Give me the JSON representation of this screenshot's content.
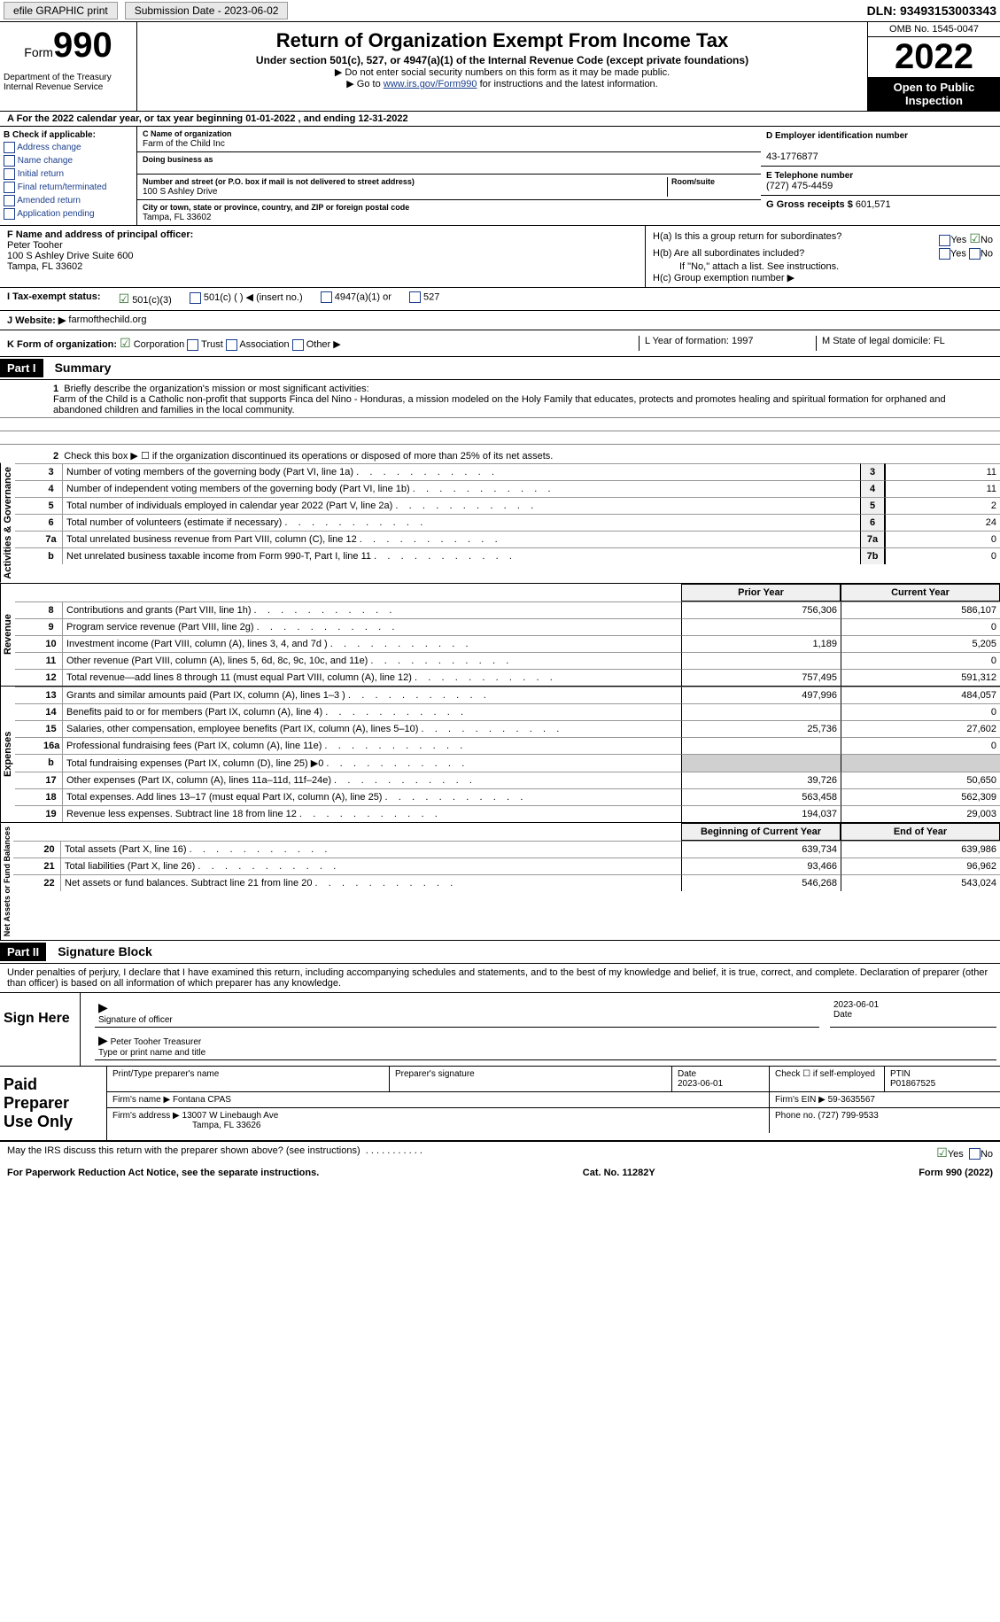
{
  "topbar": {
    "efile": "efile GRAPHIC print",
    "sub_date_label": "Submission Date - 2023-06-02",
    "dln": "DLN: 93493153003343"
  },
  "header": {
    "form_word": "Form",
    "form_num": "990",
    "title": "Return of Organization Exempt From Income Tax",
    "subtitle": "Under section 501(c), 527, or 4947(a)(1) of the Internal Revenue Code (except private foundations)",
    "note1": "▶ Do not enter social security numbers on this form as it may be made public.",
    "note2_pre": "▶ Go to ",
    "note2_link": "www.irs.gov/Form990",
    "note2_post": " for instructions and the latest information.",
    "dept": "Department of the Treasury Internal Revenue Service",
    "omb": "OMB No. 1545-0047",
    "year": "2022",
    "inspect": "Open to Public Inspection"
  },
  "lineA": "A For the 2022 calendar year, or tax year beginning 01-01-2022   , and ending 12-31-2022",
  "sectionB": {
    "hdr": "B Check if applicable:",
    "opts": [
      "Address change",
      "Name change",
      "Initial return",
      "Final return/terminated",
      "Amended return",
      "Application pending"
    ]
  },
  "sectionC": {
    "name_label": "C Name of organization",
    "name": "Farm of the Child Inc",
    "dba_label": "Doing business as",
    "addr_label": "Number and street (or P.O. box if mail is not delivered to street address)",
    "room_label": "Room/suite",
    "addr": "100 S Ashley Drive",
    "city_label": "City or town, state or province, country, and ZIP or foreign postal code",
    "city": "Tampa, FL  33602"
  },
  "sectionD": {
    "label": "D Employer identification number",
    "ein": "43-1776877",
    "tel_label": "E Telephone number",
    "tel": "(727) 475-4459",
    "gross_label": "G Gross receipts $",
    "gross": "601,571"
  },
  "sectionF": {
    "label": "F  Name and address of principal officer:",
    "name": "Peter Tooher",
    "addr": "100 S Ashley Drive Suite 600",
    "city": "Tampa, FL  33602"
  },
  "sectionH": {
    "ha": "H(a)  Is this a group return for subordinates?",
    "hb": "H(b)  Are all subordinates included?",
    "hb_note": "If \"No,\" attach a list. See instructions.",
    "hc": "H(c)  Group exemption number ▶",
    "yes": "Yes",
    "no": "No"
  },
  "sectionI": {
    "label": "I   Tax-exempt status:",
    "o1": "501(c)(3)",
    "o2": "501(c) (  ) ◀ (insert no.)",
    "o3": "4947(a)(1) or",
    "o4": "527"
  },
  "sectionJ": {
    "label": "J   Website: ▶",
    "site": "farmofthechild.org"
  },
  "sectionK": {
    "label": "K Form of organization:",
    "o1": "Corporation",
    "o2": "Trust",
    "o3": "Association",
    "o4": "Other ▶",
    "l": "L Year of formation: 1997",
    "m": "M State of legal domicile: FL"
  },
  "partI": {
    "part": "Part I",
    "title": "Summary",
    "q1_label": "Briefly describe the organization's mission or most significant activities:",
    "q1_text": "Farm of the Child is a Catholic non-profit that supports Finca del Nino - Honduras, a mission modeled on the Holy Family that educates, protects and promotes healing and spiritual formation for orphaned and abandoned children and families in the local community.",
    "q2": "Check this box ▶ ☐  if the organization discontinued its operations or disposed of more than 25% of its net assets.",
    "tabs": {
      "a": "Activities & Governance",
      "r": "Revenue",
      "e": "Expenses",
      "n": "Net Assets or Fund Balances"
    },
    "rows_single": [
      {
        "n": "3",
        "t": "Number of voting members of the governing body (Part VI, line 1a)",
        "box": "3",
        "v": "11"
      },
      {
        "n": "4",
        "t": "Number of independent voting members of the governing body (Part VI, line 1b)",
        "box": "4",
        "v": "11"
      },
      {
        "n": "5",
        "t": "Total number of individuals employed in calendar year 2022 (Part V, line 2a)",
        "box": "5",
        "v": "2"
      },
      {
        "n": "6",
        "t": "Total number of volunteers (estimate if necessary)",
        "box": "6",
        "v": "24"
      },
      {
        "n": "7a",
        "t": "Total unrelated business revenue from Part VIII, column (C), line 12",
        "box": "7a",
        "v": "0"
      },
      {
        "n": "b",
        "t": "Net unrelated business taxable income from Form 990-T, Part I, line 11",
        "box": "7b",
        "v": "0"
      }
    ],
    "col_prior": "Prior Year",
    "col_current": "Current Year",
    "col_begin": "Beginning of Current Year",
    "col_end": "End of Year",
    "rows_rev": [
      {
        "n": "8",
        "t": "Contributions and grants (Part VIII, line 1h)",
        "p": "756,306",
        "c": "586,107"
      },
      {
        "n": "9",
        "t": "Program service revenue (Part VIII, line 2g)",
        "p": "",
        "c": "0"
      },
      {
        "n": "10",
        "t": "Investment income (Part VIII, column (A), lines 3, 4, and 7d )",
        "p": "1,189",
        "c": "5,205"
      },
      {
        "n": "11",
        "t": "Other revenue (Part VIII, column (A), lines 5, 6d, 8c, 9c, 10c, and 11e)",
        "p": "",
        "c": "0"
      },
      {
        "n": "12",
        "t": "Total revenue—add lines 8 through 11 (must equal Part VIII, column (A), line 12)",
        "p": "757,495",
        "c": "591,312"
      }
    ],
    "rows_exp": [
      {
        "n": "13",
        "t": "Grants and similar amounts paid (Part IX, column (A), lines 1–3 )",
        "p": "497,996",
        "c": "484,057"
      },
      {
        "n": "14",
        "t": "Benefits paid to or for members (Part IX, column (A), line 4)",
        "p": "",
        "c": "0"
      },
      {
        "n": "15",
        "t": "Salaries, other compensation, employee benefits (Part IX, column (A), lines 5–10)",
        "p": "25,736",
        "c": "27,602"
      },
      {
        "n": "16a",
        "t": "Professional fundraising fees (Part IX, column (A), line 11e)",
        "p": "",
        "c": "0"
      },
      {
        "n": "b",
        "t": "Total fundraising expenses (Part IX, column (D), line 25) ▶0",
        "p": "shaded",
        "c": "shaded"
      },
      {
        "n": "17",
        "t": "Other expenses (Part IX, column (A), lines 11a–11d, 11f–24e)",
        "p": "39,726",
        "c": "50,650"
      },
      {
        "n": "18",
        "t": "Total expenses. Add lines 13–17 (must equal Part IX, column (A), line 25)",
        "p": "563,458",
        "c": "562,309"
      },
      {
        "n": "19",
        "t": "Revenue less expenses. Subtract line 18 from line 12",
        "p": "194,037",
        "c": "29,003"
      }
    ],
    "rows_net": [
      {
        "n": "20",
        "t": "Total assets (Part X, line 16)",
        "p": "639,734",
        "c": "639,986"
      },
      {
        "n": "21",
        "t": "Total liabilities (Part X, line 26)",
        "p": "93,466",
        "c": "96,962"
      },
      {
        "n": "22",
        "t": "Net assets or fund balances. Subtract line 21 from line 20",
        "p": "546,268",
        "c": "543,024"
      }
    ]
  },
  "partII": {
    "part": "Part II",
    "title": "Signature Block",
    "decl": "Under penalties of perjury, I declare that I have examined this return, including accompanying schedules and statements, and to the best of my knowledge and belief, it is true, correct, and complete. Declaration of preparer (other than officer) is based on all information of which preparer has any knowledge.",
    "sign_here": "Sign Here",
    "sig_date": "2023-06-01",
    "sig_label": "Signature of officer",
    "date_label": "Date",
    "name_title": "Peter Tooher  Treasurer",
    "name_label": "Type or print name and title",
    "paid": "Paid Preparer Use Only",
    "prep_name_label": "Print/Type preparer's name",
    "prep_sig_label": "Preparer's signature",
    "prep_date_label": "Date",
    "prep_date": "2023-06-01",
    "check_self": "Check ☐ if self-employed",
    "ptin_label": "PTIN",
    "ptin": "P01867525",
    "firm_name_label": "Firm's name    ▶",
    "firm_name": "Fontana CPAS",
    "firm_ein_label": "Firm's EIN ▶",
    "firm_ein": "59-3635567",
    "firm_addr_label": "Firm's address ▶",
    "firm_addr": "13007 W Linebaugh Ave",
    "firm_city": "Tampa, FL  33626",
    "phone_label": "Phone no.",
    "phone": "(727) 799-9533"
  },
  "footer": {
    "discuss": "May the IRS discuss this return with the preparer shown above? (see instructions)",
    "yes": "Yes",
    "no": "No",
    "pra": "For Paperwork Reduction Act Notice, see the separate instructions.",
    "cat": "Cat. No. 11282Y",
    "form": "Form 990 (2022)"
  }
}
